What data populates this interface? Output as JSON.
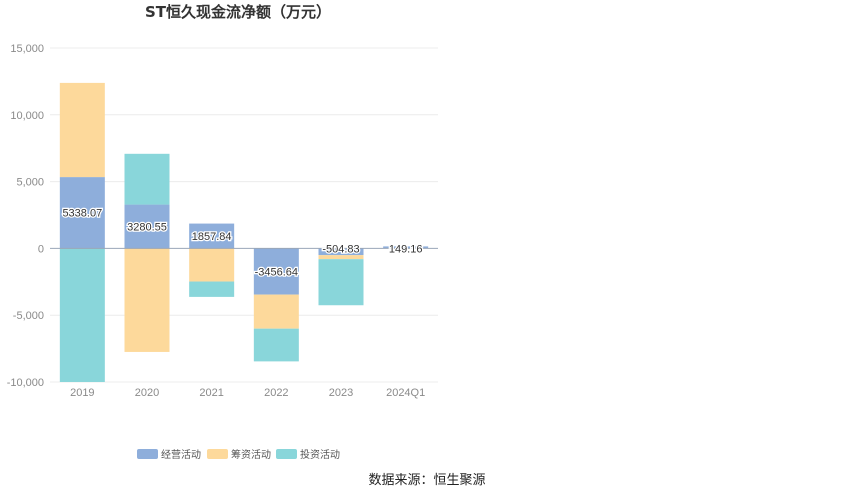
{
  "chart_data": {
    "type": "bar",
    "stacked": true,
    "title": "ST恒久现金流净额（万元）",
    "categories": [
      "2019",
      "2020",
      "2021",
      "2022",
      "2023",
      "2024Q1"
    ],
    "series": [
      {
        "name": "经营活动",
        "color": "#8eaedb",
        "values": [
          5338.07,
          3280.55,
          1857.84,
          -3456.64,
          -504.83,
          149.16
        ]
      },
      {
        "name": "筹资活动",
        "color": "#fdd99b",
        "values": [
          7050,
          -7750,
          -2480,
          -2550,
          -300,
          0
        ]
      },
      {
        "name": "投资活动",
        "color": "#89d6da",
        "values": [
          -10000,
          3800,
          -1150,
          -2450,
          -3450,
          0
        ]
      }
    ],
    "data_labels": [
      "5338.07",
      "3280.55",
      "1857.84",
      "-3456.64",
      "-504.83",
      "149.16"
    ],
    "ylim": [
      -10000,
      15000
    ],
    "yticks": [
      15000,
      10000,
      5000,
      0,
      -5000,
      -10000
    ],
    "ytick_labels": [
      "15,000",
      "10,000",
      "5,000",
      "0",
      "-5,000",
      "-10,000"
    ],
    "legend_position": "bottom",
    "grid": true
  },
  "source": "数据来源：恒生聚源"
}
